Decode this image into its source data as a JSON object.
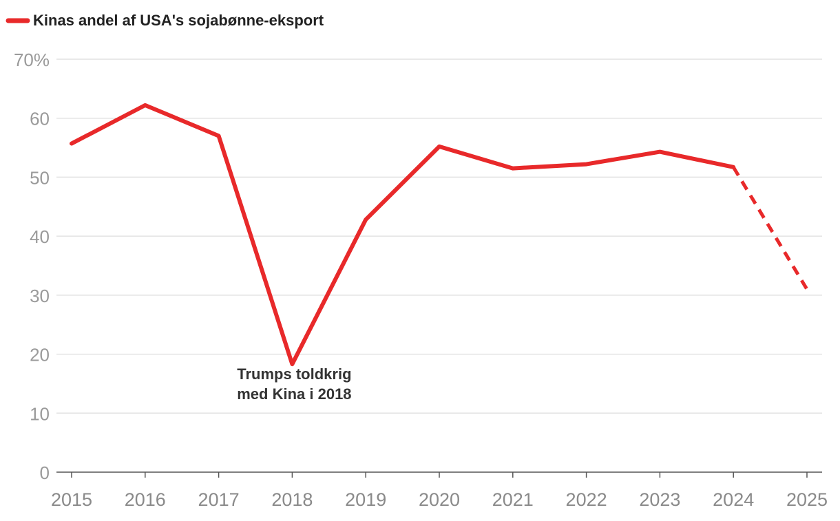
{
  "chart_data": {
    "type": "line",
    "title": "",
    "legend": [
      {
        "label": "Kinas andel af USA's sojabønne-eksport",
        "color": "#e8292a"
      }
    ],
    "legend_position": "top-left",
    "xlabel": "",
    "ylabel": "",
    "x": [
      "2015",
      "2016",
      "2017",
      "2018",
      "2019",
      "2020",
      "2021",
      "2022",
      "2023",
      "2024",
      "2025"
    ],
    "series": [
      {
        "name": "Kinas andel af USA's sojabønne-eksport",
        "color": "#e8292a",
        "values": [
          55.7,
          62.2,
          57.0,
          18.3,
          42.8,
          55.2,
          51.5,
          52.2,
          54.3,
          51.7,
          31.0
        ],
        "dashed_from_index": 9
      }
    ],
    "ylim": [
      0,
      70
    ],
    "yticks": [
      0,
      10,
      20,
      30,
      40,
      50,
      60,
      70
    ],
    "ytick_labels": [
      "0",
      "10",
      "20",
      "30",
      "40",
      "50",
      "60",
      "70%"
    ],
    "grid": true,
    "annotations": [
      {
        "lines": [
          "Trumps toldkrig",
          "med Kina i 2018"
        ],
        "x": "2018",
        "y": 18.3
      }
    ]
  }
}
